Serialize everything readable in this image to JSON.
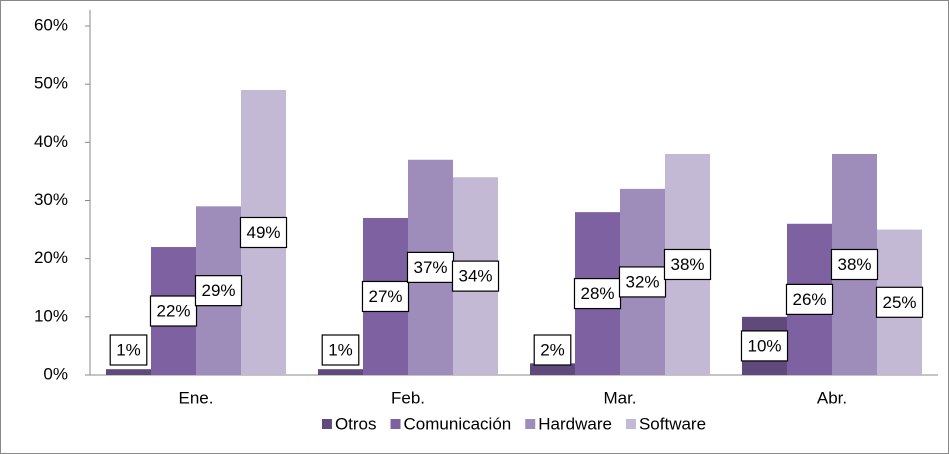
{
  "chart_data": {
    "type": "bar",
    "categories": [
      "Ene.",
      "Feb.",
      "Mar.",
      "Abr."
    ],
    "series": [
      {
        "name": "Otros",
        "color": "#604a7b",
        "values": [
          1,
          1,
          2,
          10
        ],
        "value_labels": [
          "1%",
          "1%",
          "2%",
          "10%"
        ]
      },
      {
        "name": "Comunicación",
        "color": "#7e61a0",
        "values": [
          22,
          27,
          28,
          26
        ],
        "value_labels": [
          "22%",
          "27%",
          "28%",
          "26%"
        ]
      },
      {
        "name": "Hardware",
        "color": "#9e8cbb",
        "values": [
          29,
          37,
          32,
          38
        ],
        "value_labels": [
          "29%",
          "37%",
          "32%",
          "38%"
        ]
      },
      {
        "name": "Software",
        "color": "#c3b9d4",
        "values": [
          49,
          34,
          38,
          25
        ],
        "value_labels": [
          "49%",
          "34%",
          "38%",
          "25%"
        ]
      }
    ],
    "ylim": [
      0,
      60
    ],
    "yticks": [
      {
        "value": 0,
        "label": "0%"
      },
      {
        "value": 10,
        "label": "10%"
      },
      {
        "value": 20,
        "label": "20%"
      },
      {
        "value": 30,
        "label": "30%"
      },
      {
        "value": 40,
        "label": "40%"
      },
      {
        "value": 50,
        "label": "50%"
      },
      {
        "value": 60,
        "label": "60%"
      }
    ],
    "legend": "bottom"
  }
}
